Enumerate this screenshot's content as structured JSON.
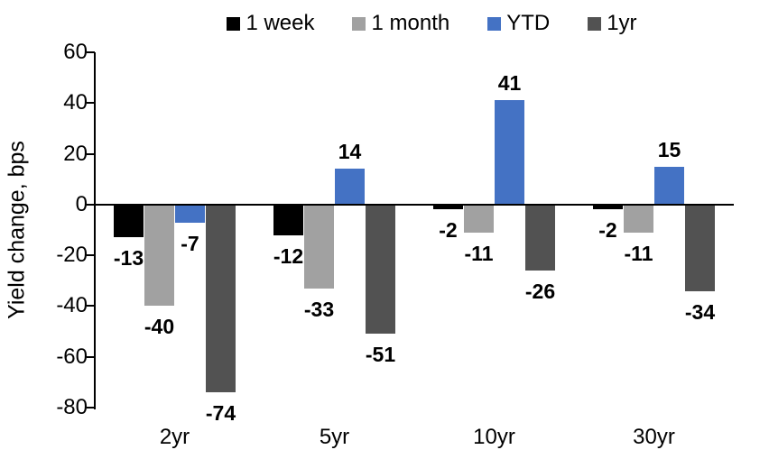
{
  "chart": {
    "y_axis_title": "Yield change, bps"
  },
  "chart_data": {
    "type": "bar",
    "title": "",
    "xlabel": "",
    "ylabel": "Yield change, bps",
    "categories": [
      "2yr",
      "5yr",
      "10yr",
      "30yr"
    ],
    "series": [
      {
        "name": "1 week",
        "color": "#000000",
        "values": [
          -13,
          -12,
          -2,
          -2
        ]
      },
      {
        "name": "1 month",
        "color": "#A1A1A1",
        "values": [
          -40,
          -33,
          -11,
          -11
        ]
      },
      {
        "name": "YTD",
        "color": "#4472C4",
        "values": [
          -7,
          14,
          41,
          15
        ]
      },
      {
        "name": "1yr",
        "color": "#525252",
        "values": [
          -74,
          -51,
          -26,
          -34
        ]
      }
    ],
    "ylim": [
      -80,
      60
    ],
    "yticks": [
      60,
      40,
      20,
      0,
      -20,
      -40,
      -60,
      -80
    ],
    "grid": false,
    "legend_position": "top",
    "data_labels": true,
    "axis_color": "#000000"
  }
}
